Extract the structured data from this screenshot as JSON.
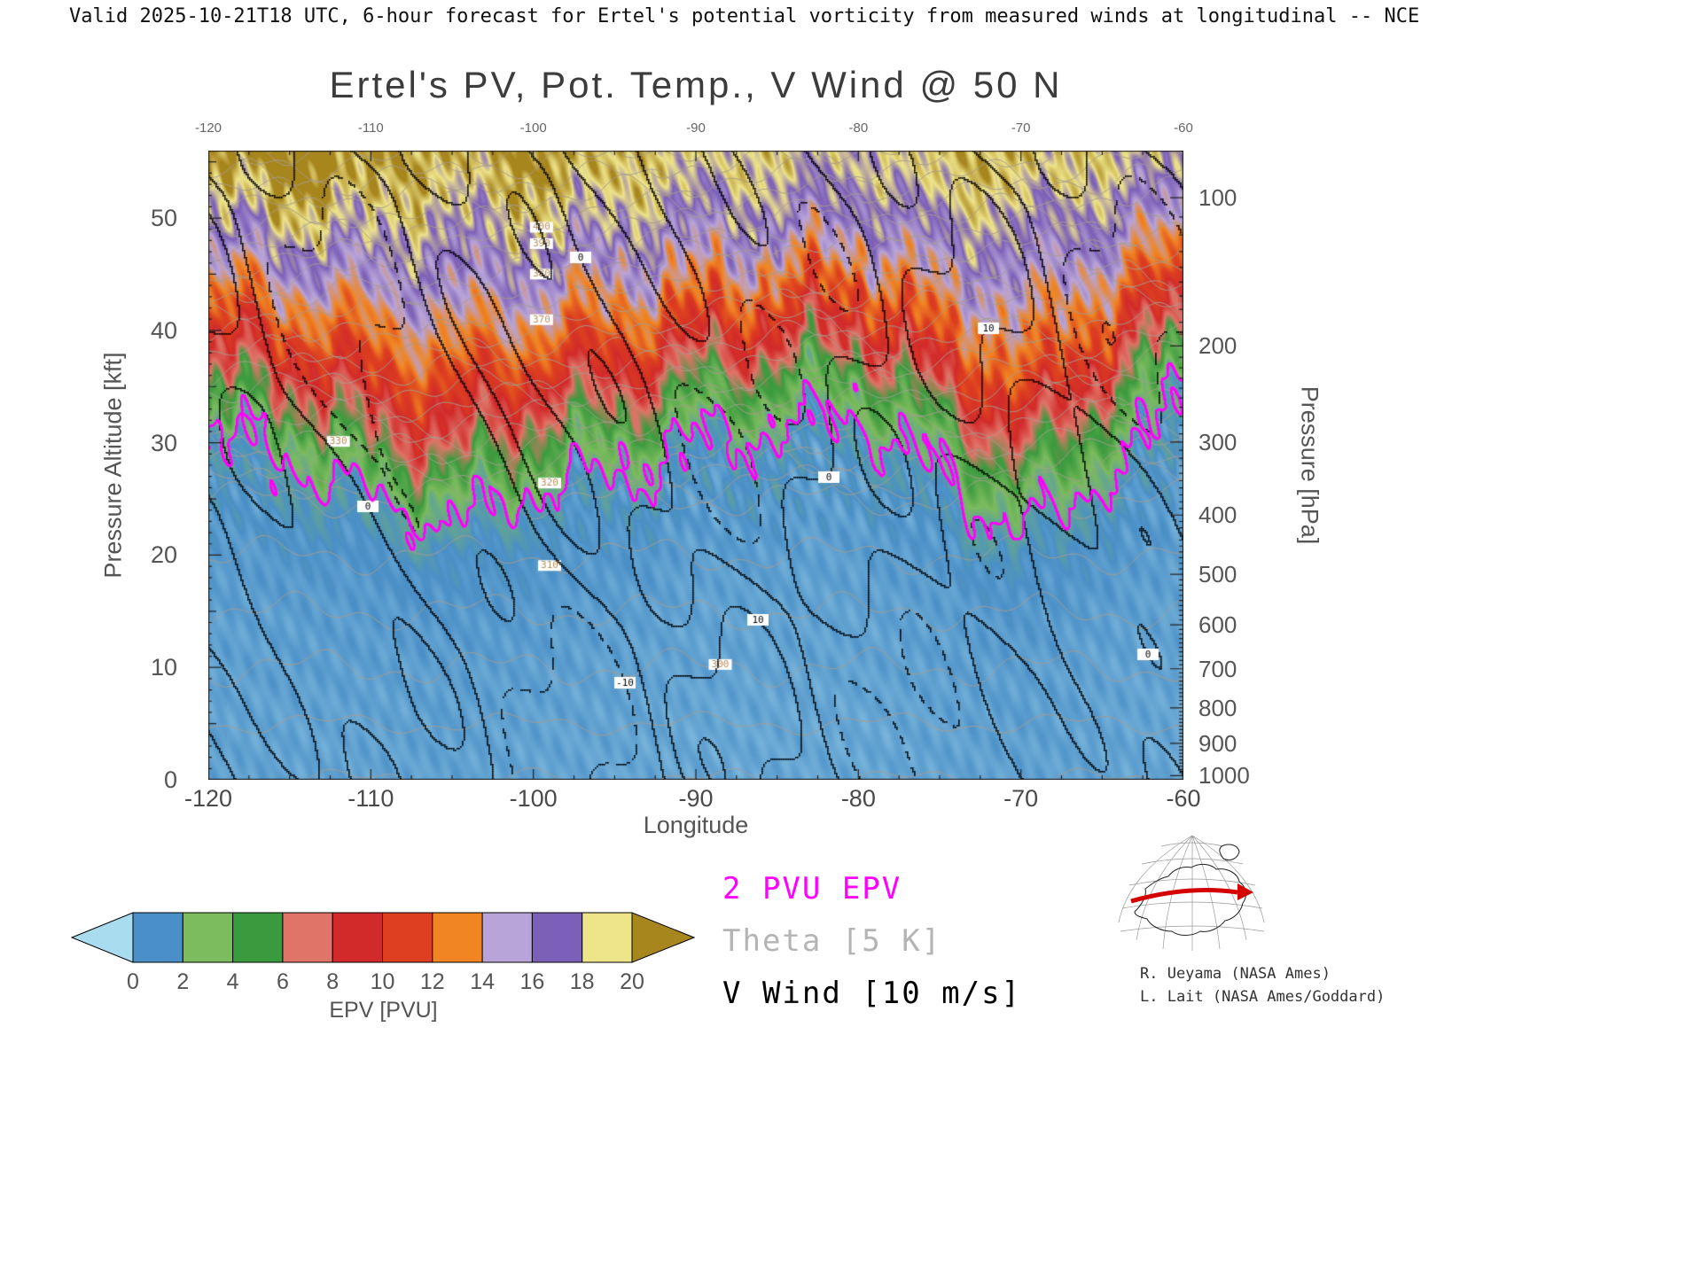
{
  "header": {
    "text": "Valid 2025-10-21T18 UTC, 6-hour forecast for Ertel's potential vorticity from measured winds at longitudinal -- NCE"
  },
  "title": "Ertel's PV, Pot. Temp., V Wind @ 50 N",
  "axes": {
    "x": {
      "label": "Longitude",
      "range": [
        -120,
        -60
      ],
      "ticks": [
        -120,
        -110,
        -100,
        -90,
        -80,
        -70,
        -60
      ],
      "minor_tick_step_deg": 2.5
    },
    "y_left": {
      "label": "Pressure Altitude [kft]",
      "range": [
        0,
        56
      ],
      "ticks": [
        0,
        10,
        20,
        30,
        40,
        50
      ]
    },
    "y_right": {
      "label": "Pressure [hPa]",
      "ticks": [
        100,
        200,
        300,
        400,
        500,
        600,
        700,
        800,
        900,
        1000
      ]
    }
  },
  "colorbar": {
    "label": "EPV [PVU]",
    "ticks": [
      0,
      2,
      4,
      6,
      8,
      10,
      12,
      14,
      16,
      18,
      20
    ],
    "segment_colors": [
      "#4a8fc7",
      "#7cbb5e",
      "#3a9b3e",
      "#e07468",
      "#d22a2a",
      "#dd3f20",
      "#f08522",
      "#b8a4d8",
      "#7c5fb8",
      "#eee48a"
    ],
    "under_color": "#aadcf0",
    "over_color": "#a8861e"
  },
  "legend": {
    "items": [
      {
        "text": "2 PVU EPV",
        "color": "#ff00ff"
      },
      {
        "text": "Theta [5 K]",
        "color": "#b4b4b4"
      },
      {
        "text": "V Wind [10 m/s]",
        "color": "#000000"
      }
    ]
  },
  "credits": [
    "R. Ueyama (NASA Ames)",
    "L. Lait (NASA Ames/Goddard)"
  ],
  "chart_data": {
    "type": "heatmap",
    "title": "Ertel's PV, Pot. Temp., V Wind @ 50 N",
    "xlabel": "Longitude",
    "ylabel_left": "Pressure Altitude [kft]",
    "ylabel_right": "Pressure [hPa]",
    "grid": false,
    "x_longitudes": [
      -120,
      -115,
      -110,
      -105,
      -100,
      -95,
      -90,
      -85,
      -80,
      -75,
      -70,
      -65,
      -60
    ],
    "y_altitudes_kft": [
      0,
      5,
      10,
      15,
      20,
      25,
      30,
      35,
      40,
      45,
      50,
      55
    ],
    "epv_units": "PVU",
    "epv_grid_pvu": [
      [
        0.5,
        0.5,
        0.5,
        0.5,
        0.5,
        0.4,
        0.4,
        0.4,
        0.4,
        0.5,
        0.5,
        0.5,
        0.4
      ],
      [
        0.5,
        0.5,
        0.5,
        0.6,
        0.5,
        0.5,
        0.4,
        0.4,
        0.4,
        0.5,
        0.6,
        0.5,
        0.4
      ],
      [
        0.5,
        0.6,
        0.6,
        0.6,
        0.6,
        0.5,
        0.5,
        0.5,
        0.5,
        0.6,
        0.6,
        0.5,
        0.5
      ],
      [
        0.6,
        0.6,
        0.7,
        0.8,
        0.7,
        0.6,
        0.5,
        0.5,
        0.5,
        0.6,
        0.8,
        0.6,
        0.5
      ],
      [
        0.7,
        0.8,
        0.9,
        1.1,
        0.9,
        0.8,
        0.6,
        0.6,
        0.6,
        0.8,
        1.2,
        0.8,
        0.6
      ],
      [
        0.9,
        1.1,
        1.7,
        3.0,
        1.3,
        1.1,
        0.8,
        0.8,
        0.7,
        1.1,
        3.2,
        1.1,
        0.7
      ],
      [
        1.6,
        2.2,
        6.0,
        8.0,
        5.0,
        3.2,
        1.6,
        1.3,
        1.0,
        3.0,
        8.0,
        3.0,
        0.8
      ],
      [
        5.5,
        7.0,
        10.0,
        11.0,
        9.0,
        8.0,
        5.0,
        4.0,
        3.0,
        8.0,
        12.0,
        7.0,
        1.3
      ],
      [
        10,
        11,
        13,
        14,
        13,
        12,
        10,
        9,
        8,
        12,
        14,
        11,
        6
      ],
      [
        14,
        15,
        16,
        16,
        16,
        15,
        14,
        13,
        12,
        15,
        16,
        14,
        11
      ],
      [
        18,
        19,
        19,
        18,
        19,
        18,
        17,
        17,
        16,
        18,
        18,
        17,
        15
      ],
      [
        21,
        22,
        21,
        20,
        21,
        20,
        19,
        19,
        18,
        20,
        20,
        19,
        18
      ]
    ],
    "tropopause_2pvu_kft_by_lon": [
      32,
      30,
      26,
      24,
      27,
      29,
      32,
      33,
      34,
      29,
      24,
      29,
      37
    ],
    "theta_contour_interval_K": 5,
    "theta_labeled_levels_K": [
      300,
      310,
      320,
      330,
      370,
      380,
      390,
      400
    ],
    "v_wind_contour_interval_ms": 10,
    "v_wind_levels_shown_ms": [
      -20,
      -10,
      0,
      10,
      20
    ],
    "colormap_stops": [
      [
        -1,
        "#aadcf0"
      ],
      [
        1,
        "#4a8fc7"
      ],
      [
        3,
        "#7cbb5e"
      ],
      [
        5,
        "#3a9b3e"
      ],
      [
        7,
        "#e07468"
      ],
      [
        9,
        "#d22a2a"
      ],
      [
        11,
        "#dd3f20"
      ],
      [
        13,
        "#f08522"
      ],
      [
        15,
        "#b8a4d8"
      ],
      [
        17,
        "#7c5fb8"
      ],
      [
        19,
        "#eee48a"
      ],
      [
        21,
        "#a8861e"
      ]
    ]
  }
}
